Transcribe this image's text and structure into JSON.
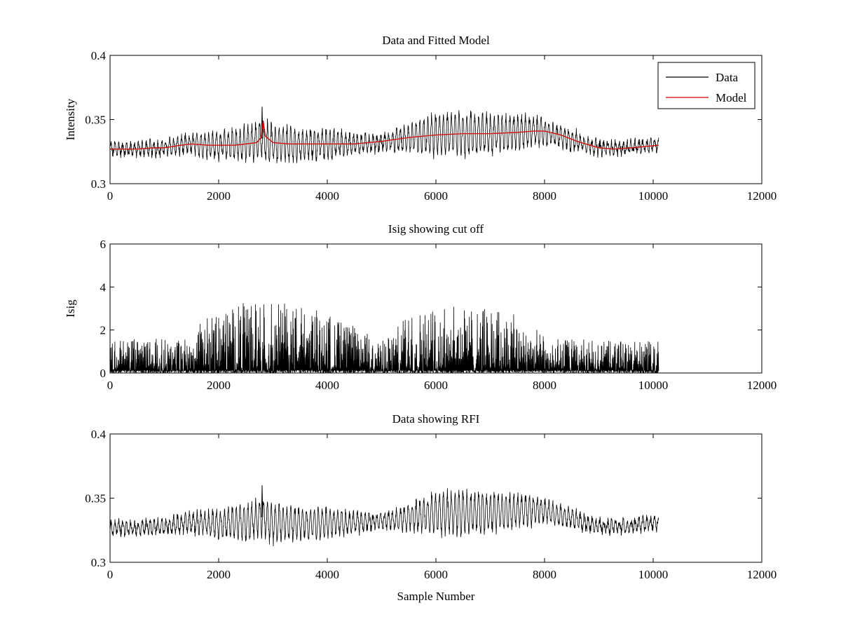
{
  "chart_data": [
    {
      "type": "line",
      "title": "Data and Fitted Model",
      "xlabel": "",
      "ylabel": "Intensity",
      "xlim": [
        0,
        12000
      ],
      "ylim": [
        0.3,
        0.4
      ],
      "xticks": [
        0,
        2000,
        4000,
        6000,
        8000,
        10000,
        12000
      ],
      "yticks": [
        0.3,
        0.35,
        0.4
      ],
      "xtick_labels": [
        "0",
        "2000",
        "4000",
        "6000",
        "8000",
        "10000",
        "12000"
      ],
      "ytick_labels": [
        "0.3",
        "0.35",
        "0.4"
      ],
      "grid": false,
      "legend": {
        "placement": "top-right",
        "entries": [
          "Data",
          "Model"
        ]
      },
      "series": [
        {
          "name": "Data",
          "color": "#000000",
          "style": "oscillating",
          "x_range": [
            0,
            10100
          ],
          "center_points": [
            [
              0,
              0.327
            ],
            [
              500,
              0.327
            ],
            [
              1000,
              0.328
            ],
            [
              1500,
              0.331
            ],
            [
              2000,
              0.33
            ],
            [
              2500,
              0.331
            ],
            [
              2800,
              0.335
            ],
            [
              3000,
              0.331
            ],
            [
              3500,
              0.33
            ],
            [
              4000,
              0.331
            ],
            [
              4500,
              0.331
            ],
            [
              5000,
              0.332
            ],
            [
              5500,
              0.335
            ],
            [
              6000,
              0.338
            ],
            [
              6500,
              0.339
            ],
            [
              7000,
              0.339
            ],
            [
              7500,
              0.34
            ],
            [
              7800,
              0.341
            ],
            [
              8000,
              0.34
            ],
            [
              8500,
              0.334
            ],
            [
              9000,
              0.328
            ],
            [
              9500,
              0.328
            ],
            [
              10100,
              0.331
            ]
          ],
          "envelope_points": [
            [
              0,
              0.005
            ],
            [
              500,
              0.005
            ],
            [
              1000,
              0.006
            ],
            [
              1500,
              0.008
            ],
            [
              2000,
              0.011
            ],
            [
              2500,
              0.014
            ],
            [
              3000,
              0.016
            ],
            [
              3500,
              0.013
            ],
            [
              4000,
              0.012
            ],
            [
              4500,
              0.008
            ],
            [
              5000,
              0.006
            ],
            [
              5500,
              0.011
            ],
            [
              6000,
              0.017
            ],
            [
              6500,
              0.018
            ],
            [
              7000,
              0.016
            ],
            [
              7500,
              0.014
            ],
            [
              8000,
              0.01
            ],
            [
              8500,
              0.008
            ],
            [
              9000,
              0.005
            ],
            [
              9500,
              0.005
            ],
            [
              10100,
              0.005
            ]
          ],
          "spikes": [
            [
              2800,
              0.36
            ]
          ]
        },
        {
          "name": "Model",
          "color": "#d40000",
          "points": [
            [
              0,
              0.327
            ],
            [
              300,
              0.327
            ],
            [
              500,
              0.327
            ],
            [
              800,
              0.328
            ],
            [
              1000,
              0.328
            ],
            [
              1300,
              0.33
            ],
            [
              1500,
              0.331
            ],
            [
              1800,
              0.33
            ],
            [
              2000,
              0.33
            ],
            [
              2300,
              0.33
            ],
            [
              2500,
              0.331
            ],
            [
              2700,
              0.332
            ],
            [
              2780,
              0.336
            ],
            [
              2820,
              0.349
            ],
            [
              2860,
              0.337
            ],
            [
              3000,
              0.332
            ],
            [
              3300,
              0.331
            ],
            [
              3500,
              0.331
            ],
            [
              4000,
              0.331
            ],
            [
              4500,
              0.331
            ],
            [
              5000,
              0.333
            ],
            [
              5500,
              0.336
            ],
            [
              6000,
              0.338
            ],
            [
              6500,
              0.339
            ],
            [
              7000,
              0.339
            ],
            [
              7500,
              0.34
            ],
            [
              7800,
              0.341
            ],
            [
              8000,
              0.341
            ],
            [
              8300,
              0.338
            ],
            [
              8600,
              0.333
            ],
            [
              9000,
              0.328
            ],
            [
              9300,
              0.327
            ],
            [
              9600,
              0.328
            ],
            [
              10100,
              0.33
            ]
          ]
        }
      ]
    },
    {
      "type": "line",
      "title": "Isig showing cut off",
      "xlabel": "",
      "ylabel": "Isig",
      "xlim": [
        0,
        12000
      ],
      "ylim": [
        0,
        6
      ],
      "xticks": [
        0,
        2000,
        4000,
        6000,
        8000,
        10000,
        12000
      ],
      "yticks": [
        0,
        2,
        4,
        6
      ],
      "xtick_labels": [
        "0",
        "2000",
        "4000",
        "6000",
        "8000",
        "10000",
        "12000"
      ],
      "ytick_labels": [
        "0",
        "2",
        "4",
        "6"
      ],
      "grid": false,
      "series": [
        {
          "color": "#000000",
          "style": "noise",
          "x_range": [
            0,
            10100
          ],
          "envelope_points": [
            [
              0,
              1.6
            ],
            [
              1000,
              1.6
            ],
            [
              1500,
              1.7
            ],
            [
              1700,
              2.5
            ],
            [
              2000,
              2.8
            ],
            [
              2500,
              3.3
            ],
            [
              3000,
              3.3
            ],
            [
              3500,
              3.2
            ],
            [
              4000,
              2.8
            ],
            [
              4500,
              2.2
            ],
            [
              5000,
              1.5
            ],
            [
              5300,
              2.2
            ],
            [
              5500,
              2.8
            ],
            [
              6000,
              3.1
            ],
            [
              6500,
              3.1
            ],
            [
              7000,
              3.0
            ],
            [
              7500,
              2.8
            ],
            [
              7800,
              2.2
            ],
            [
              8000,
              1.7
            ],
            [
              9000,
              1.5
            ],
            [
              10100,
              1.5
            ]
          ]
        }
      ]
    },
    {
      "type": "line",
      "title": "Data showing RFI",
      "xlabel": "Sample Number",
      "ylabel": "",
      "xlim": [
        0,
        12000
      ],
      "ylim": [
        0.3,
        0.4
      ],
      "xticks": [
        0,
        2000,
        4000,
        6000,
        8000,
        10000,
        12000
      ],
      "yticks": [
        0.3,
        0.35,
        0.4
      ],
      "xtick_labels": [
        "0",
        "2000",
        "4000",
        "6000",
        "8000",
        "10000",
        "12000"
      ],
      "ytick_labels": [
        "0.3",
        "0.35",
        "0.4"
      ],
      "grid": false,
      "series": [
        {
          "color": "#000000",
          "style": "oscillating",
          "x_range": [
            0,
            10100
          ],
          "center_points": [
            [
              0,
              0.327
            ],
            [
              500,
              0.327
            ],
            [
              1000,
              0.328
            ],
            [
              1500,
              0.331
            ],
            [
              2000,
              0.33
            ],
            [
              2500,
              0.331
            ],
            [
              2800,
              0.335
            ],
            [
              3000,
              0.331
            ],
            [
              3500,
              0.33
            ],
            [
              4000,
              0.331
            ],
            [
              4500,
              0.331
            ],
            [
              5000,
              0.332
            ],
            [
              5500,
              0.335
            ],
            [
              6000,
              0.338
            ],
            [
              6500,
              0.339
            ],
            [
              7000,
              0.339
            ],
            [
              7500,
              0.34
            ],
            [
              7800,
              0.341
            ],
            [
              8000,
              0.34
            ],
            [
              8500,
              0.334
            ],
            [
              9000,
              0.328
            ],
            [
              9500,
              0.328
            ],
            [
              10100,
              0.331
            ]
          ],
          "envelope_points": [
            [
              0,
              0.005
            ],
            [
              500,
              0.005
            ],
            [
              1000,
              0.006
            ],
            [
              1500,
              0.008
            ],
            [
              2000,
              0.011
            ],
            [
              2500,
              0.014
            ],
            [
              3000,
              0.016
            ],
            [
              3500,
              0.013
            ],
            [
              4000,
              0.012
            ],
            [
              4500,
              0.008
            ],
            [
              5000,
              0.006
            ],
            [
              5500,
              0.011
            ],
            [
              6000,
              0.017
            ],
            [
              6500,
              0.018
            ],
            [
              7000,
              0.016
            ],
            [
              7500,
              0.014
            ],
            [
              8000,
              0.01
            ],
            [
              8500,
              0.008
            ],
            [
              9000,
              0.005
            ],
            [
              9500,
              0.005
            ],
            [
              10100,
              0.005
            ]
          ],
          "spikes": [
            [
              2800,
              0.36
            ]
          ]
        }
      ]
    }
  ]
}
